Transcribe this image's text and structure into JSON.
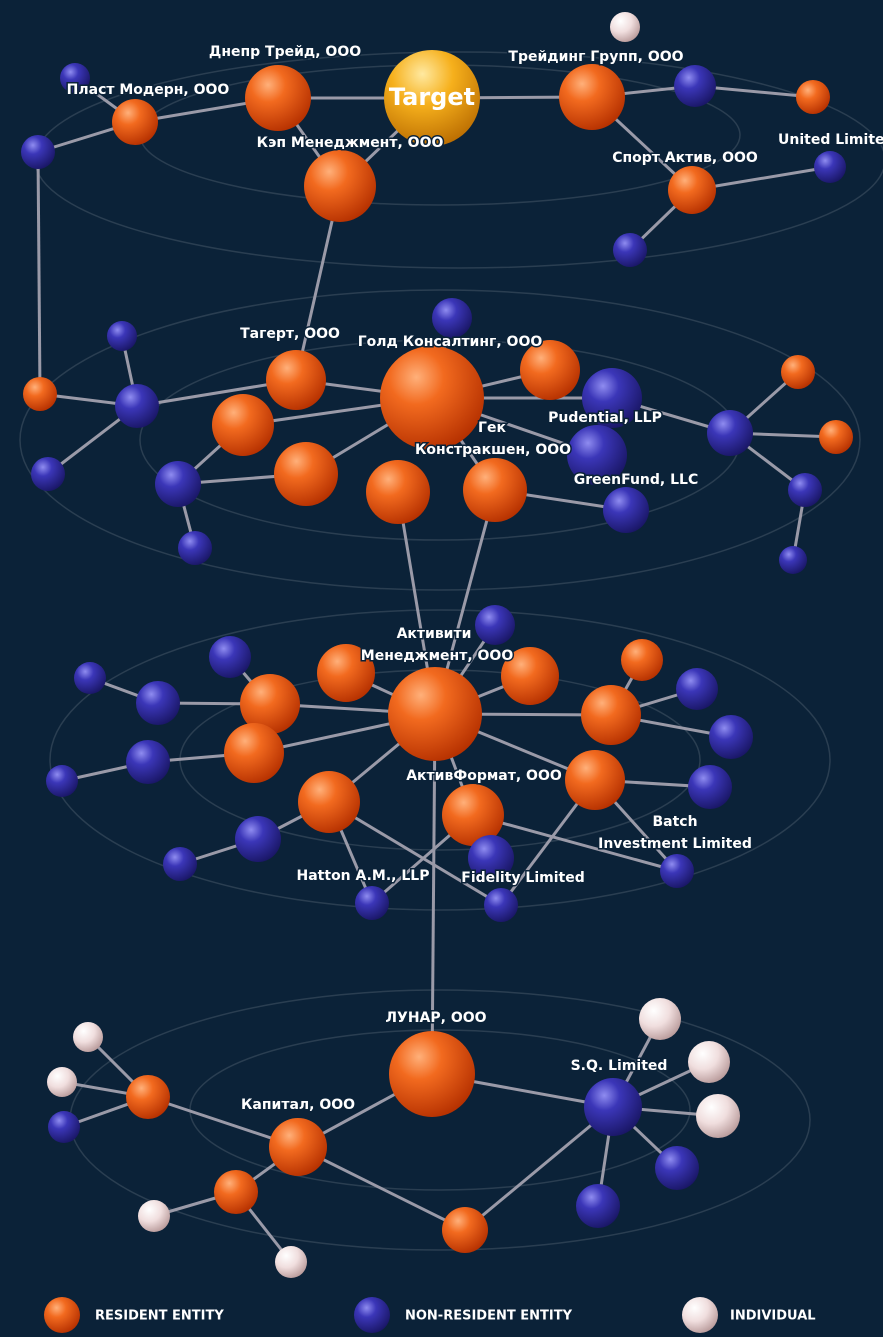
{
  "labels": [
    "Target",
    "Днепр Трейд, ООО",
    "Пласт Модерн, ООО",
    "Кэп Менеджмент, ООО",
    "Трейдинг Групп, ООО",
    "United Limited",
    "Спорт Актив, ООО",
    "Тагерт, ООО",
    "Голд Консалтинг, ООО",
    "Pudential, LLP",
    "Гек",
    "Констракшен, ООО",
    "GreenFund, LLC",
    "Активити",
    "Менеджмент, ООО",
    "АктивФормат, ООО",
    "Batch",
    "Investment Limited",
    "Hatton A.M., LLP",
    "Fidelity Limited",
    "ЛУНАР, ООО",
    "S.Q. Limited",
    "Капитал, ООО"
  ],
  "legend": [
    "RESIDENT ENTITY",
    "NON-RESIDENT ENTITY",
    "INDIVIDUAL"
  ]
}
